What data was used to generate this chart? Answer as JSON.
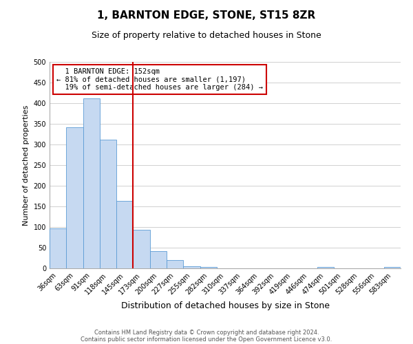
{
  "title": "1, BARNTON EDGE, STONE, ST15 8ZR",
  "subtitle": "Size of property relative to detached houses in Stone",
  "xlabel": "Distribution of detached houses by size in Stone",
  "ylabel": "Number of detached properties",
  "bar_labels": [
    "36sqm",
    "63sqm",
    "91sqm",
    "118sqm",
    "145sqm",
    "173sqm",
    "200sqm",
    "227sqm",
    "255sqm",
    "282sqm",
    "310sqm",
    "337sqm",
    "364sqm",
    "392sqm",
    "419sqm",
    "446sqm",
    "474sqm",
    "501sqm",
    "528sqm",
    "556sqm",
    "583sqm"
  ],
  "bar_values": [
    97,
    341,
    411,
    311,
    163,
    94,
    42,
    20,
    5,
    3,
    0,
    0,
    0,
    0,
    0,
    0,
    3,
    0,
    0,
    0,
    3
  ],
  "bar_color": "#c6d9f1",
  "bar_edge_color": "#5b9bd5",
  "vline_index": 4.5,
  "vline_color": "#cc0000",
  "annotation_text": "  1 BARNTON EDGE: 152sqm\n← 81% of detached houses are smaller (1,197)\n  19% of semi-detached houses are larger (284) →",
  "annotation_box_color": "#ffffff",
  "annotation_box_edge_color": "#cc0000",
  "ylim": [
    0,
    500
  ],
  "yticks": [
    0,
    50,
    100,
    150,
    200,
    250,
    300,
    350,
    400,
    450,
    500
  ],
  "background_color": "#ffffff",
  "grid_color": "#d0d0d0",
  "footer_line1": "Contains HM Land Registry data © Crown copyright and database right 2024.",
  "footer_line2": "Contains public sector information licensed under the Open Government Licence v3.0.",
  "title_fontsize": 11,
  "subtitle_fontsize": 9,
  "xlabel_fontsize": 9,
  "ylabel_fontsize": 8,
  "tick_fontsize": 7,
  "annotation_fontsize": 7.5,
  "footer_fontsize": 6
}
